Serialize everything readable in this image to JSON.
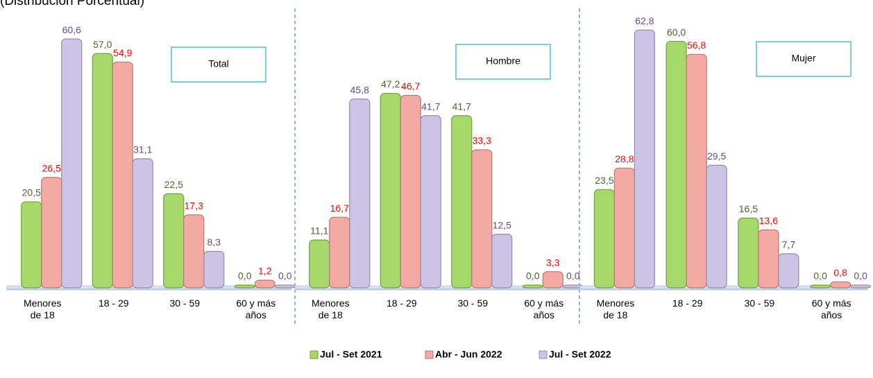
{
  "subtitle": "(Distribución Porcentual)",
  "chart_data": [
    {
      "type": "bar",
      "title": "Total",
      "categories": [
        "Menores de 18",
        "18 - 29",
        "30 - 59",
        "60 y más años"
      ],
      "ylim": [
        0,
        70
      ],
      "series": [
        {
          "name": "Jul - Set 2021",
          "color": "#a6d96a",
          "label_color": "#4f6228",
          "values": [
            20.5,
            57.0,
            22.5,
            0.0
          ],
          "value_labels": [
            "20,5",
            "57,0",
            "22,5",
            "0,0"
          ]
        },
        {
          "name": "Abr - Jun 2022",
          "color": "#f4aaa2",
          "label_color": "#ff0000",
          "values": [
            26.5,
            54.9,
            17.3,
            1.2
          ],
          "value_labels": [
            "26,5",
            "54,9",
            "17,3",
            "1,2"
          ]
        },
        {
          "name": "Jul - Set 2022",
          "color": "#cdc3e6",
          "label_color": "#5f4b8b",
          "values": [
            60.6,
            31.1,
            8.3,
            0.0
          ],
          "value_labels": [
            "60,6",
            "31,1",
            "8,3",
            "0,0"
          ]
        }
      ]
    },
    {
      "type": "bar",
      "title": "Hombre",
      "categories": [
        "Menores de 18",
        "18 - 29",
        "30 - 59",
        "60 y más años"
      ],
      "ylim": [
        0,
        70
      ],
      "series": [
        {
          "color": "#a6d96a",
          "label_color": "#4f6228",
          "values": [
            11.1,
            47.2,
            41.7,
            0.0
          ],
          "value_labels": [
            "11,1",
            "47,2",
            "41,7",
            "0,0"
          ]
        },
        {
          "color": "#f4aaa2",
          "label_color": "#ff0000",
          "values": [
            16.7,
            46.7,
            33.3,
            3.3
          ],
          "value_labels": [
            "16,7",
            "46,7",
            "33,3",
            "3,3"
          ]
        },
        {
          "color": "#cdc3e6",
          "label_color": "#5f4b8b",
          "values": [
            45.8,
            41.7,
            12.5,
            0.0
          ],
          "value_labels": [
            "45,8",
            "41,7",
            "12,5",
            "0,0"
          ]
        }
      ]
    },
    {
      "type": "bar",
      "title": "Mujer",
      "categories": [
        "Menores de 18",
        "18 - 29",
        "30 - 59",
        "60 y más años"
      ],
      "ylim": [
        0,
        70
      ],
      "series": [
        {
          "color": "#a6d96a",
          "label_color": "#4f6228",
          "values": [
            23.5,
            60.0,
            16.5,
            0.0
          ],
          "value_labels": [
            "23,5",
            "60,0",
            "16,5",
            "0,0"
          ]
        },
        {
          "color": "#f4aaa2",
          "label_color": "#ff0000",
          "values": [
            28.8,
            56.8,
            13.6,
            0.8
          ],
          "value_labels": [
            "28,8",
            "56,8",
            "13,6",
            "0,8"
          ]
        },
        {
          "color": "#cdc3e6",
          "label_color": "#5f4b8b",
          "values": [
            62.8,
            29.5,
            7.7,
            0.0
          ],
          "value_labels": [
            "62,8",
            "29,5",
            "7,7",
            "0,0"
          ]
        }
      ]
    }
  ]
}
